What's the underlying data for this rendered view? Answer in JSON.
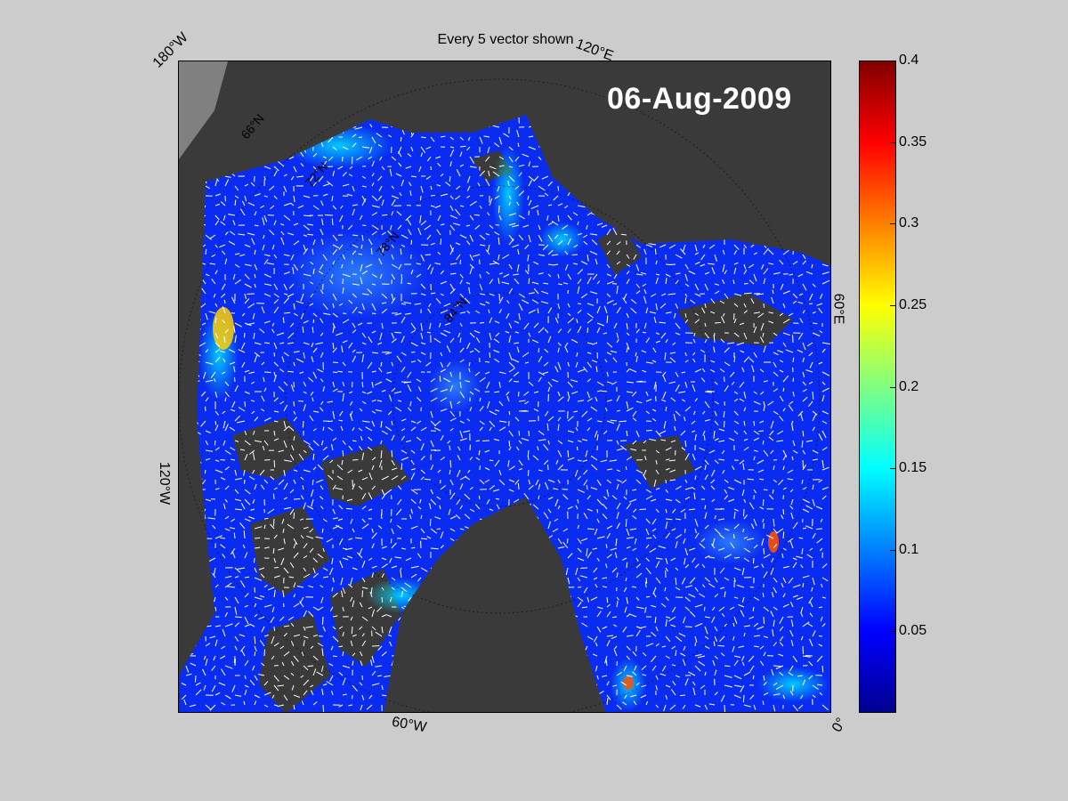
{
  "title": "Every 5 vector shown",
  "date": "06-Aug-2009",
  "longitude_labels": {
    "lon_180w": "180°W",
    "lon_120e": "120°E",
    "lon_60e": "60°E",
    "lon_120w": "120°W",
    "lon_60w": "60°W",
    "lon_0": "0°"
  },
  "latitude_labels": {
    "lat_66n": "66°N",
    "lat_72n": "72°N",
    "lat_78n": "78°N",
    "lat_84n": "84°N"
  },
  "colorbar": {
    "ticks": [
      "0.4",
      "0.35",
      "0.3",
      "0.25",
      "0.2",
      "0.15",
      "0.1",
      "0.05"
    ],
    "range": [
      0,
      0.4
    ],
    "colormap": "jet"
  },
  "colors": {
    "background": "#cccccc",
    "land": "#3a3a3a",
    "ocean_low": "#0a2cf0",
    "vectors": "#ffffff"
  }
}
